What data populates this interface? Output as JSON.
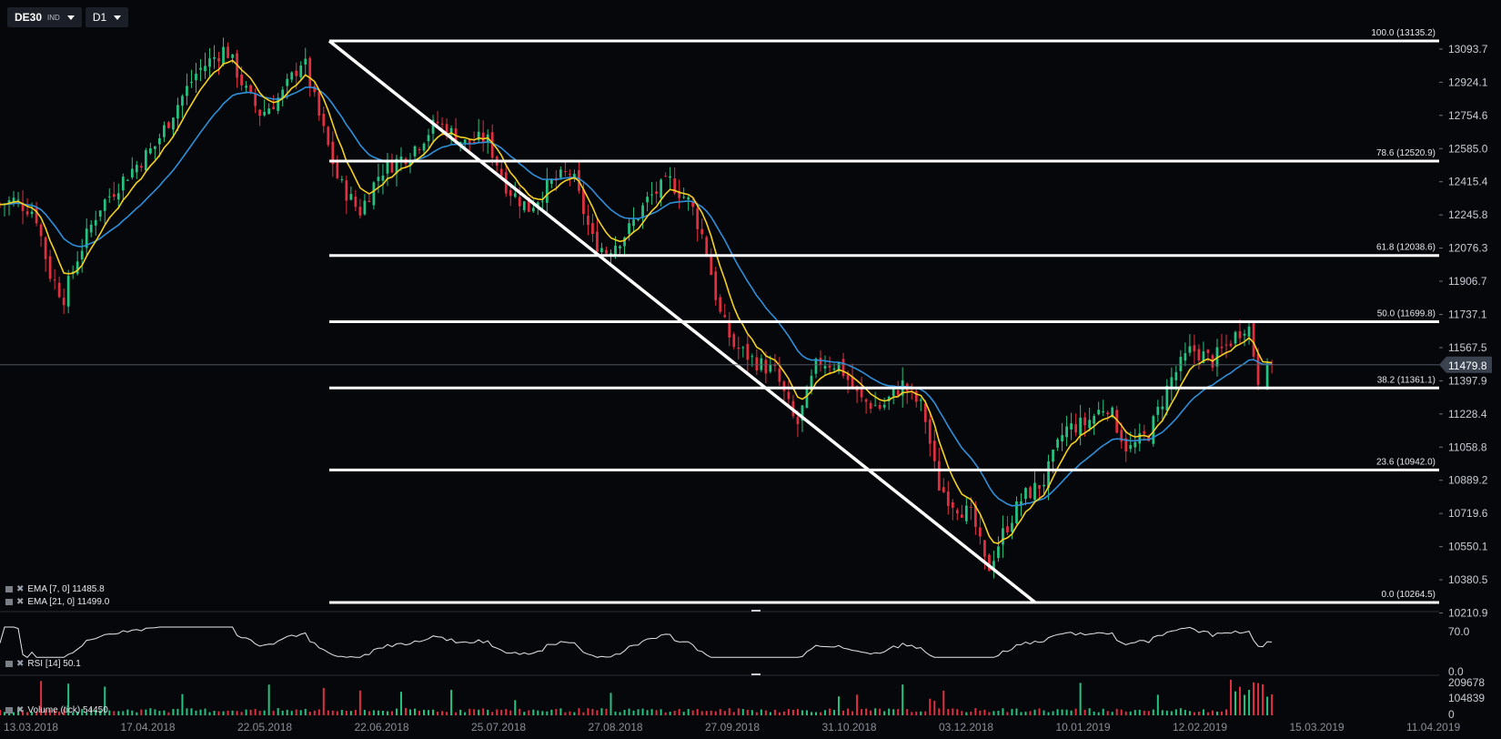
{
  "toolbar": {
    "symbol": "DE30",
    "symbol_type": "IND",
    "timeframe": "D1"
  },
  "colors": {
    "background": "#05070b",
    "up": "#26c281",
    "down": "#e0303f",
    "ema7": "#f5d020",
    "ema21": "#2f8fd8",
    "fib": "#ffffff",
    "grid": "#2a2e36",
    "text": "#c8ccd4",
    "price_tag": "#3a4250"
  },
  "price_axis": {
    "ticks": [
      "13093.7",
      "12924.1",
      "12754.6",
      "12585.0",
      "12415.4",
      "12245.8",
      "12076.3",
      "11906.7",
      "11737.1",
      "11567.5",
      "11397.9",
      "11228.4",
      "11058.8",
      "10889.2",
      "10719.6",
      "10550.1",
      "10380.5",
      "10210.9"
    ],
    "current_price": "11479.8"
  },
  "fib_levels": [
    {
      "label": "100.0 (13135.2)",
      "price": 13135.2
    },
    {
      "label": "78.6 (12520.9)",
      "price": 12520.9
    },
    {
      "label": "61.8 (12038.6)",
      "price": 12038.6
    },
    {
      "label": "50.0 (11699.8)",
      "price": 11699.8
    },
    {
      "label": "38.2 (11361.1)",
      "price": 11361.1
    },
    {
      "label": "23.6 (10942.0)",
      "price": 10942.0
    },
    {
      "label": "0.0 (10264.5)",
      "price": 10264.5
    }
  ],
  "indicators": {
    "ema7": "EMA [7, 0] 11485.8",
    "ema21": "EMA [21, 0] 11499.0",
    "rsi": "RSI [14] 50.1",
    "volume": "Volume (tick) 54450"
  },
  "rsi_axis": {
    "ticks": [
      "70.0",
      "0.0"
    ]
  },
  "volume_axis": {
    "ticks": [
      "209678",
      "104839",
      "0"
    ]
  },
  "time_axis": {
    "labels": [
      "13.03.2018",
      "17.04.2018",
      "22.05.2018",
      "22.06.2018",
      "25.07.2018",
      "27.08.2018",
      "27.09.2018",
      "31.10.2018",
      "03.12.2018",
      "10.01.2019",
      "12.02.2019",
      "15.03.2019",
      "11.04.2019"
    ]
  },
  "chart_data": {
    "type": "candlestick",
    "symbol": "DE30",
    "timeframe": "D1",
    "x_range": [
      "13.03.2018",
      "11.04.2019"
    ],
    "y_range": [
      10210.9,
      13135.2
    ],
    "series": [
      {
        "name": "EMA [7, 0]",
        "last": 11485.8
      },
      {
        "name": "EMA [21, 0]",
        "last": 11499.0
      }
    ],
    "rsi": {
      "period": 14,
      "last": 50.1
    },
    "volume": {
      "last": 54450,
      "axis_max": 209678
    },
    "close_anchors": [
      {
        "t": 0.0,
        "c": 12300
      },
      {
        "t": 0.01,
        "c": 12320
      },
      {
        "t": 0.025,
        "c": 12260
      },
      {
        "t": 0.035,
        "c": 11950
      },
      {
        "t": 0.045,
        "c": 11820
      },
      {
        "t": 0.055,
        "c": 12030
      },
      {
        "t": 0.07,
        "c": 12280
      },
      {
        "t": 0.09,
        "c": 12450
      },
      {
        "t": 0.11,
        "c": 12600
      },
      {
        "t": 0.125,
        "c": 12800
      },
      {
        "t": 0.14,
        "c": 12980
      },
      {
        "t": 0.16,
        "c": 13100
      },
      {
        "t": 0.175,
        "c": 12870
      },
      {
        "t": 0.185,
        "c": 12760
      },
      {
        "t": 0.2,
        "c": 12860
      },
      {
        "t": 0.215,
        "c": 13050
      },
      {
        "t": 0.225,
        "c": 12780
      },
      {
        "t": 0.24,
        "c": 12420
      },
      {
        "t": 0.255,
        "c": 12260
      },
      {
        "t": 0.27,
        "c": 12470
      },
      {
        "t": 0.29,
        "c": 12560
      },
      {
        "t": 0.31,
        "c": 12720
      },
      {
        "t": 0.33,
        "c": 12610
      },
      {
        "t": 0.345,
        "c": 12640
      },
      {
        "t": 0.36,
        "c": 12380
      },
      {
        "t": 0.375,
        "c": 12280
      },
      {
        "t": 0.39,
        "c": 12400
      },
      {
        "t": 0.405,
        "c": 12470
      },
      {
        "t": 0.42,
        "c": 12120
      },
      {
        "t": 0.43,
        "c": 12060
      },
      {
        "t": 0.445,
        "c": 12160
      },
      {
        "t": 0.46,
        "c": 12330
      },
      {
        "t": 0.475,
        "c": 12420
      },
      {
        "t": 0.49,
        "c": 12300
      },
      {
        "t": 0.5,
        "c": 12100
      },
      {
        "t": 0.51,
        "c": 11750
      },
      {
        "t": 0.52,
        "c": 11580
      },
      {
        "t": 0.535,
        "c": 11500
      },
      {
        "t": 0.55,
        "c": 11440
      },
      {
        "t": 0.565,
        "c": 11160
      },
      {
        "t": 0.58,
        "c": 11500
      },
      {
        "t": 0.595,
        "c": 11480
      },
      {
        "t": 0.61,
        "c": 11300
      },
      {
        "t": 0.625,
        "c": 11260
      },
      {
        "t": 0.64,
        "c": 11380
      },
      {
        "t": 0.655,
        "c": 11250
      },
      {
        "t": 0.665,
        "c": 10870
      },
      {
        "t": 0.675,
        "c": 10780
      },
      {
        "t": 0.69,
        "c": 10700
      },
      {
        "t": 0.7,
        "c": 10420
      },
      {
        "t": 0.71,
        "c": 10600
      },
      {
        "t": 0.725,
        "c": 10800
      },
      {
        "t": 0.74,
        "c": 10880
      },
      {
        "t": 0.755,
        "c": 11150
      },
      {
        "t": 0.77,
        "c": 11180
      },
      {
        "t": 0.785,
        "c": 11280
      },
      {
        "t": 0.8,
        "c": 11040
      },
      {
        "t": 0.815,
        "c": 11130
      },
      {
        "t": 0.83,
        "c": 11400
      },
      {
        "t": 0.845,
        "c": 11560
      },
      {
        "t": 0.86,
        "c": 11500
      },
      {
        "t": 0.875,
        "c": 11620
      },
      {
        "t": 0.885,
        "c": 11700
      },
      {
        "t": 0.893,
        "c": 11380
      },
      {
        "t": 0.902,
        "c": 11479.8
      }
    ]
  }
}
